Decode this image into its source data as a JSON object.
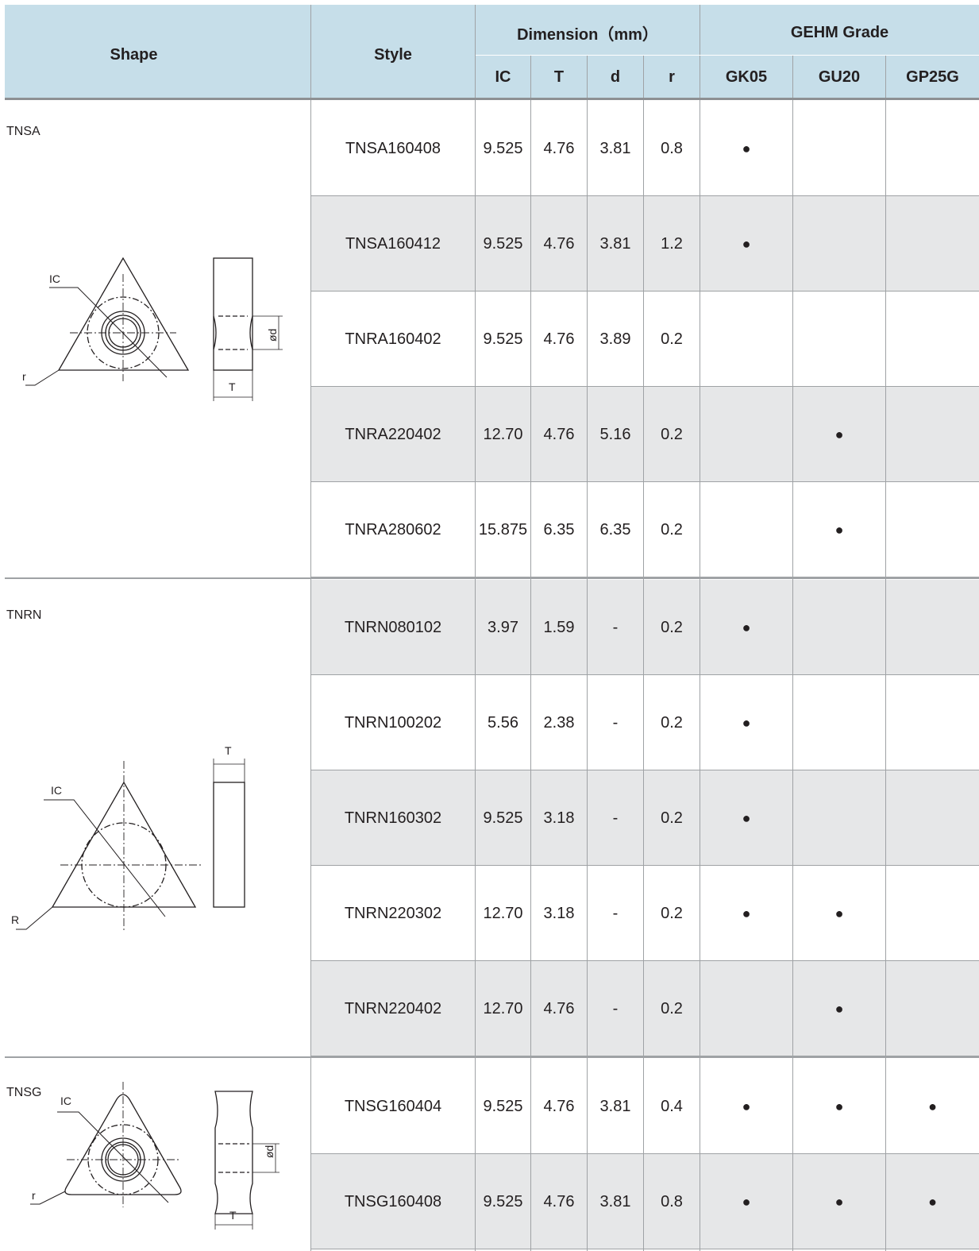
{
  "header": {
    "shape": "Shape",
    "style": "Style",
    "dimension": "Dimension（mm）",
    "grade": "GEHM Grade",
    "ic": "IC",
    "t": "T",
    "d": "d",
    "r": "r",
    "gk05": "GK05",
    "gu20": "GU20",
    "gp25g": "GP25G"
  },
  "groups": [
    {
      "label": "TNSA",
      "drawing": {
        "ic": "IC",
        "r": "r",
        "d": "ød",
        "t": "T"
      },
      "rows": [
        {
          "style": "TNSA160408",
          "ic": "9.525",
          "t": "4.76",
          "d": "3.81",
          "r": "0.8",
          "gk05": "●",
          "gu20": "",
          "gp25g": ""
        },
        {
          "style": "TNSA160412",
          "ic": "9.525",
          "t": "4.76",
          "d": "3.81",
          "r": "1.2",
          "gk05": "●",
          "gu20": "",
          "gp25g": ""
        },
        {
          "style": "TNRA160402",
          "ic": "9.525",
          "t": "4.76",
          "d": "3.89",
          "r": "0.2",
          "gk05": "",
          "gu20": "",
          "gp25g": ""
        },
        {
          "style": "TNRA220402",
          "ic": "12.70",
          "t": "4.76",
          "d": "5.16",
          "r": "0.2",
          "gk05": "",
          "gu20": "●",
          "gp25g": ""
        },
        {
          "style": "TNRA280602",
          "ic": "15.875",
          "t": "6.35",
          "d": "6.35",
          "r": "0.2",
          "gk05": "",
          "gu20": "●",
          "gp25g": ""
        }
      ]
    },
    {
      "label": "TNRN",
      "drawing": {
        "ic": "IC",
        "r": "R",
        "t": "T"
      },
      "rows": [
        {
          "style": "TNRN080102",
          "ic": "3.97",
          "t": "1.59",
          "d": "-",
          "r": "0.2",
          "gk05": "●",
          "gu20": "",
          "gp25g": ""
        },
        {
          "style": "TNRN100202",
          "ic": "5.56",
          "t": "2.38",
          "d": "-",
          "r": "0.2",
          "gk05": "●",
          "gu20": "",
          "gp25g": ""
        },
        {
          "style": "TNRN160302",
          "ic": "9.525",
          "t": "3.18",
          "d": "-",
          "r": "0.2",
          "gk05": "●",
          "gu20": "",
          "gp25g": ""
        },
        {
          "style": "TNRN220302",
          "ic": "12.70",
          "t": "3.18",
          "d": "-",
          "r": "0.2",
          "gk05": "●",
          "gu20": "●",
          "gp25g": ""
        },
        {
          "style": "TNRN220402",
          "ic": "12.70",
          "t": "4.76",
          "d": "-",
          "r": "0.2",
          "gk05": "",
          "gu20": "●",
          "gp25g": ""
        }
      ]
    },
    {
      "label": "TNSG",
      "drawing": {
        "ic": "IC",
        "r": "r",
        "d": "ød",
        "t": "T"
      },
      "rows": [
        {
          "style": "TNSG160404",
          "ic": "9.525",
          "t": "4.76",
          "d": "3.81",
          "r": "0.4",
          "gk05": "●",
          "gu20": "●",
          "gp25g": "●"
        },
        {
          "style": "TNSG160408",
          "ic": "9.525",
          "t": "4.76",
          "d": "3.81",
          "r": "0.8",
          "gk05": "●",
          "gu20": "●",
          "gp25g": "●"
        }
      ]
    }
  ]
}
